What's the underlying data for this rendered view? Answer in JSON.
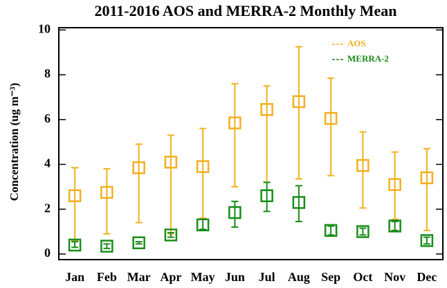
{
  "chart_data": {
    "type": "errorbar",
    "title": "2011-2016 AOS and MERRA-2 Monthly Mean",
    "y_label": "Concentration (ug m⁻³)",
    "categories": [
      "Jan",
      "Feb",
      "Mar",
      "Apr",
      "May",
      "Jun",
      "Jul",
      "Aug",
      "Sep",
      "Oct",
      "Nov",
      "Dec"
    ],
    "series": [
      {
        "name": "AOS",
        "color": "#f0b020",
        "values": [
          2.6,
          2.75,
          3.85,
          4.1,
          3.9,
          5.85,
          6.45,
          6.8,
          6.05,
          3.95,
          3.1,
          3.4
        ],
        "lower": [
          0.6,
          0.9,
          1.4,
          0.9,
          1.6,
          3.0,
          3.2,
          3.35,
          3.5,
          2.05,
          1.55,
          1.05
        ],
        "upper": [
          3.85,
          3.8,
          4.9,
          5.3,
          5.6,
          7.6,
          7.5,
          9.25,
          7.85,
          5.45,
          4.55,
          4.7
        ]
      },
      {
        "name": "MERRA-2",
        "color": "#1a8c1a",
        "values": [
          0.4,
          0.35,
          0.5,
          0.85,
          1.3,
          1.85,
          2.6,
          2.3,
          1.05,
          1.0,
          1.25,
          0.6
        ],
        "lower": [
          0.3,
          0.25,
          0.45,
          0.75,
          1.1,
          1.2,
          1.9,
          1.45,
          0.85,
          0.85,
          1.05,
          0.45
        ],
        "upper": [
          0.55,
          0.45,
          0.55,
          0.95,
          1.55,
          2.35,
          3.2,
          3.05,
          1.25,
          1.15,
          1.45,
          0.75
        ]
      }
    ],
    "ylim": [
      -0.25,
      10.1
    ],
    "yticks": [
      0,
      2,
      4,
      6,
      8,
      10
    ],
    "legend": "upper-right"
  }
}
